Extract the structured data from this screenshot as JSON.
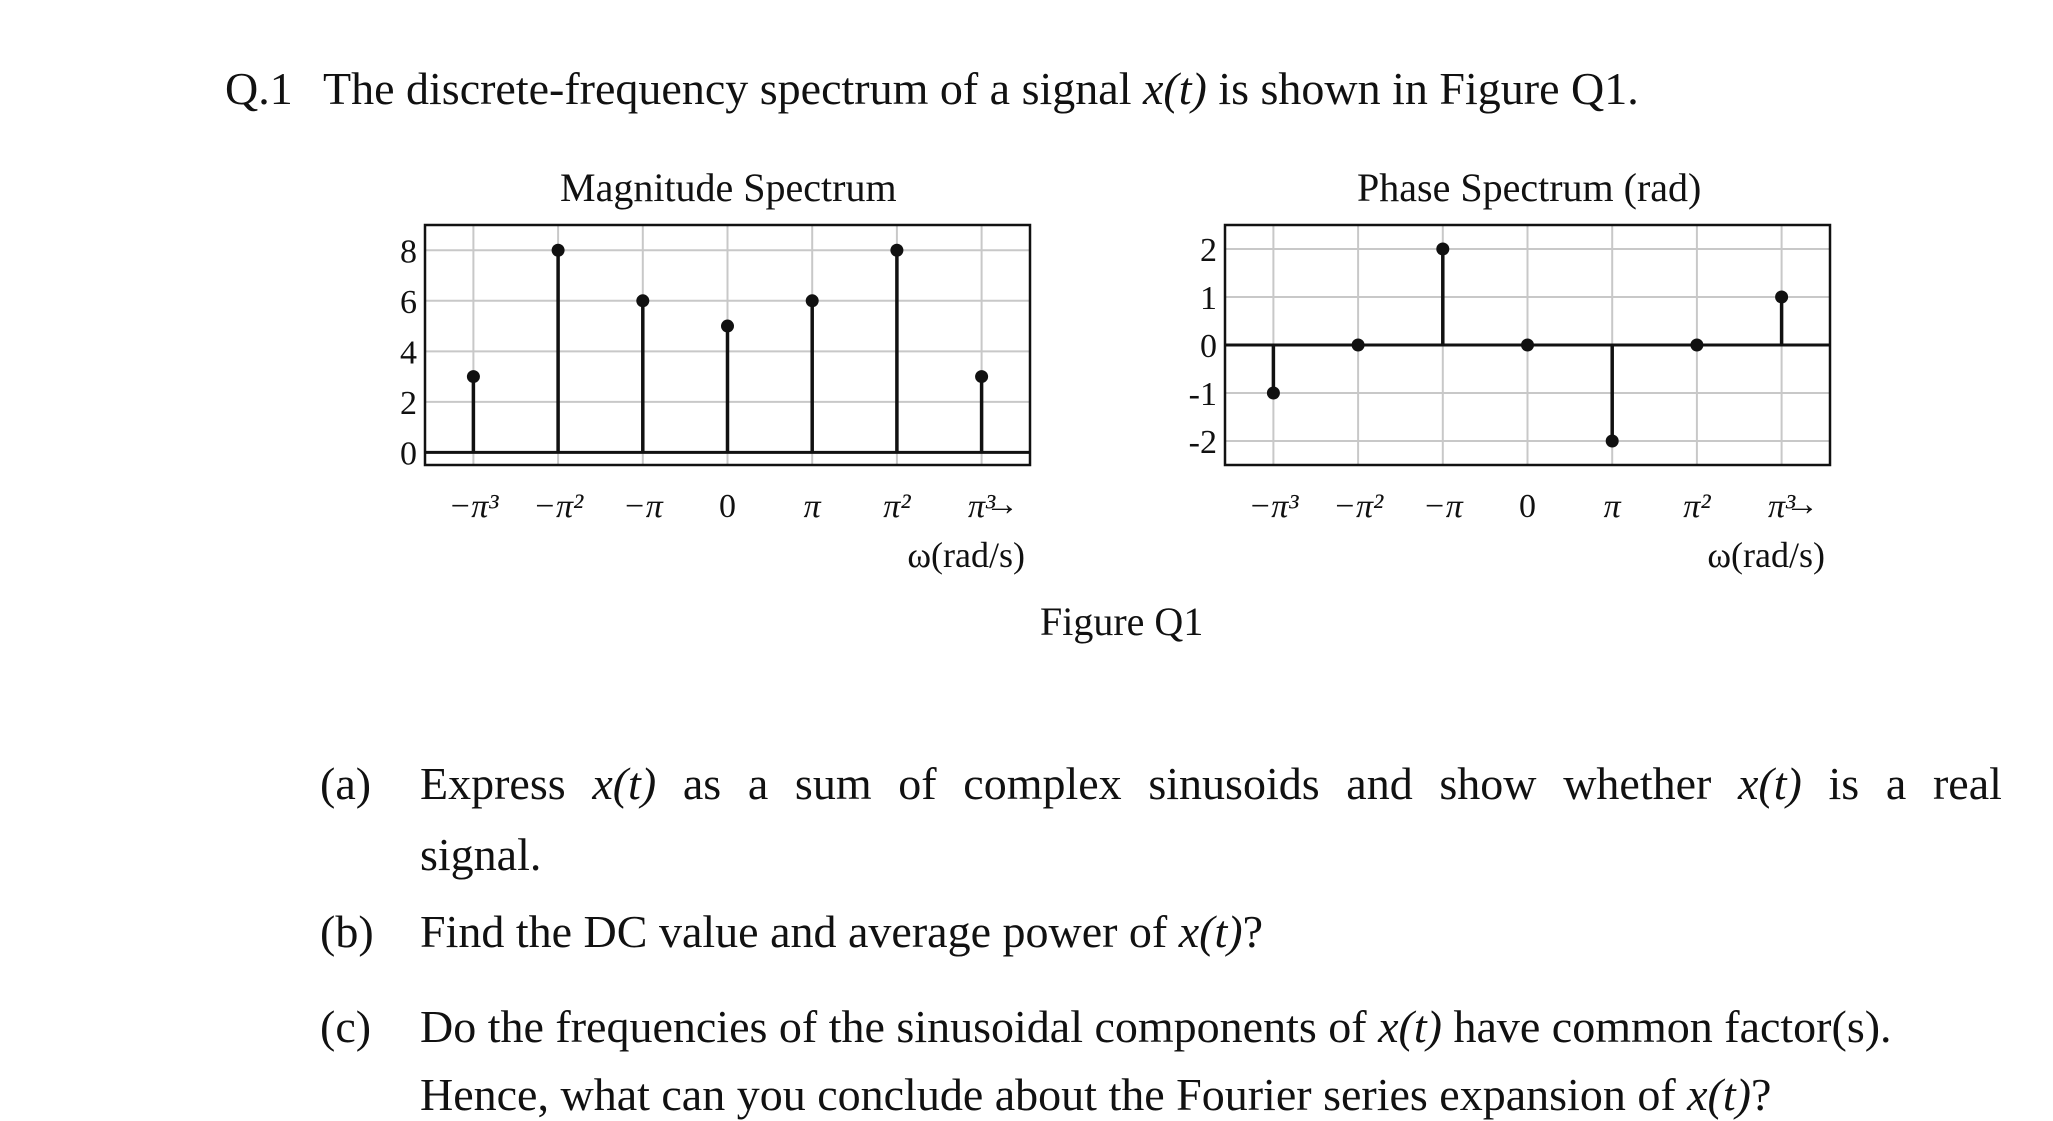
{
  "question": {
    "number": "Q.1",
    "text_before": "The discrete-frequency spectrum of a signal",
    "signal": "x(t)",
    "text_after": "is shown in Figure Q1."
  },
  "figure_caption": "Figure Q1",
  "chart_data": [
    {
      "type": "stem",
      "title": "Magnitude Spectrum",
      "xlabel": "ω(rad/s)",
      "x_arrow": "→",
      "categories": [
        "−π³",
        "−π²",
        "−π",
        "0",
        "π",
        "π²",
        "π³"
      ],
      "values": [
        3,
        8,
        6,
        5,
        6,
        8,
        3
      ],
      "yticks": [
        "8",
        "6",
        "4",
        "2",
        "0"
      ],
      "ytick_values": [
        8,
        6,
        4,
        2,
        0
      ],
      "ylim": [
        -0.5,
        9
      ],
      "grid": true
    },
    {
      "type": "stem",
      "title": "Phase Spectrum (rad)",
      "xlabel": "ω(rad/s)",
      "x_arrow": "→",
      "categories": [
        "−π³",
        "−π²",
        "−π",
        "0",
        "π",
        "π²",
        "π³"
      ],
      "values": [
        -1,
        0,
        2,
        0,
        -2,
        0,
        1
      ],
      "yticks": [
        "2",
        "1",
        "0",
        "-1",
        "-2"
      ],
      "ytick_values": [
        2,
        1,
        0,
        -1,
        -2
      ],
      "ylim": [
        -2.5,
        2.5
      ],
      "grid": true
    }
  ],
  "parts": [
    {
      "label": "(a)",
      "line1": [
        "Express",
        "x(t)",
        "as",
        "a",
        "sum",
        "of",
        "complex",
        "sinusoids",
        "and",
        "show",
        "whether",
        "x(t)",
        "is",
        "a",
        "real"
      ],
      "line2": "signal."
    },
    {
      "label": "(b)",
      "text": "Find the DC value and average power of",
      "signal": "x(t)",
      "end": "?"
    },
    {
      "label": "(c)",
      "text1": "Do the frequencies of the sinusoidal components of",
      "signal1": "x(t)",
      "text1b": "have common factor(s).",
      "text2": "Hence, what can you conclude about the Fourier series expansion of",
      "signal2": "x(t)",
      "end2": "?"
    }
  ]
}
